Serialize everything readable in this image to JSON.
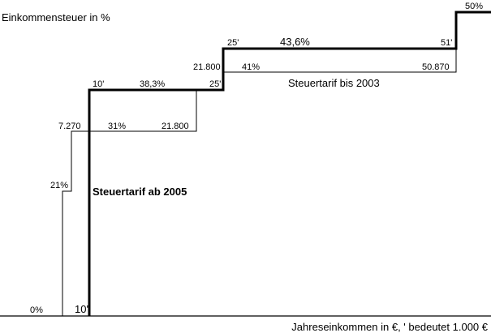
{
  "y_axis_title": "Einkommensteuer in %",
  "x_axis_title": "Jahreseinkommen in €, ' bedeutet 1.000 €",
  "tariff_2003": {
    "name": "Steuertarif bis 2003",
    "labels": {
      "zero_rate": "0%",
      "first_rate": "21%",
      "threshold_1": "7.270",
      "rate_2": "31%",
      "threshold_2_end": "21.800",
      "threshold_2": "21.800",
      "rate_3": "41%",
      "threshold_3": "50.870"
    }
  },
  "tariff_2005": {
    "name": "Steuertarif ab 2005",
    "labels": {
      "start": "10'",
      "start_step": "10'",
      "rate_1": "38,3%",
      "threshold_25": "25'",
      "threshold_25b": "25'",
      "rate_2": "43,6%",
      "threshold_51": "51'",
      "rate_top": "50%"
    }
  },
  "chart_data": {
    "type": "line",
    "title": "",
    "xlabel": "Jahreseinkommen in €, ' bedeutet 1.000 €",
    "ylabel": "Einkommensteuer in %",
    "series": [
      {
        "name": "Steuertarif bis 2003",
        "points": [
          {
            "x": 0,
            "y": 0
          },
          {
            "x": 7270,
            "y": 0
          },
          {
            "x": 7270,
            "y": 21
          },
          {
            "x": 7270,
            "y": 31
          },
          {
            "x": 21800,
            "y": 31
          },
          {
            "x": 21800,
            "y": 41
          },
          {
            "x": 50870,
            "y": 41
          }
        ]
      },
      {
        "name": "Steuertarif ab 2005",
        "points": [
          {
            "x": 10000,
            "y": 0
          },
          {
            "x": 10000,
            "y": 38.3
          },
          {
            "x": 25000,
            "y": 38.3
          },
          {
            "x": 25000,
            "y": 43.6
          },
          {
            "x": 51000,
            "y": 43.6
          },
          {
            "x": 51000,
            "y": 50
          }
        ]
      }
    ]
  }
}
